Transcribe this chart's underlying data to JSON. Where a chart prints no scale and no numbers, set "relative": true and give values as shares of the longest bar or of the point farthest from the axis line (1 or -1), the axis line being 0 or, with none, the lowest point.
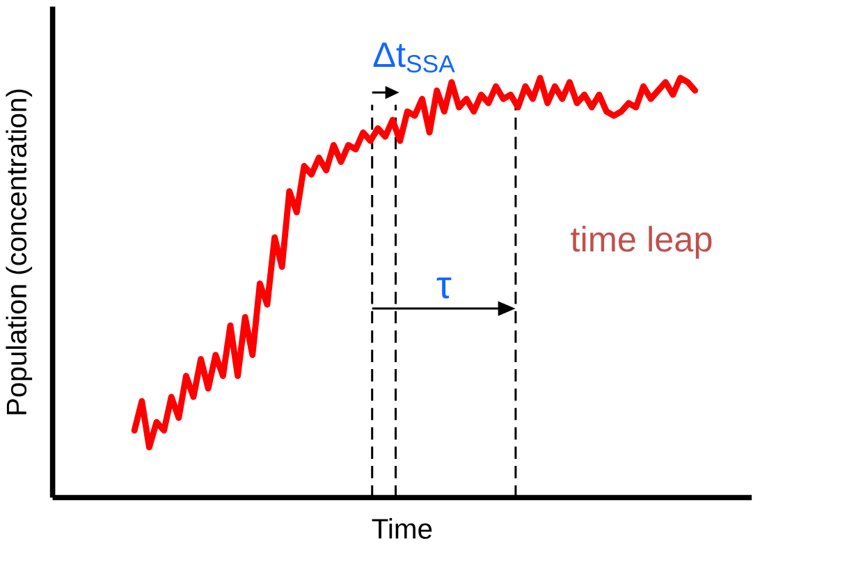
{
  "chart_data": {
    "type": "line",
    "relative": true,
    "xlabel": "Time",
    "ylabel": "Population (concentration)",
    "categories": [
      null,
      null,
      null,
      null,
      null,
      null,
      null,
      null,
      null,
      null,
      null,
      null,
      null,
      null,
      null,
      null,
      null,
      null,
      null,
      null,
      null,
      null,
      null,
      null,
      null,
      null,
      null,
      null,
      null,
      null,
      null,
      null,
      null,
      null,
      null,
      null,
      null,
      null,
      null,
      null,
      null,
      null,
      null,
      null,
      null,
      null,
      null,
      null,
      null,
      null,
      null,
      null,
      null,
      null,
      null,
      null,
      null,
      null,
      null,
      null,
      null,
      null,
      null,
      null,
      null,
      null,
      null,
      null,
      null,
      null,
      null,
      null,
      null,
      null,
      null,
      null,
      null
    ],
    "series": [
      {
        "color": "#ff0000",
        "values": [
          0.16,
          0.23,
          0.12,
          0.18,
          0.16,
          0.24,
          0.19,
          0.29,
          0.24,
          0.33,
          0.26,
          0.34,
          0.29,
          0.41,
          0.29,
          0.43,
          0.34,
          0.51,
          0.46,
          0.62,
          0.55,
          0.73,
          0.68,
          0.79,
          0.77,
          0.81,
          0.78,
          0.84,
          0.8,
          0.84,
          0.83,
          0.87,
          0.85,
          0.88,
          0.86,
          0.9,
          0.85,
          0.92,
          0.91,
          0.95,
          0.87,
          0.97,
          0.92,
          0.99,
          0.93,
          0.95,
          0.92,
          0.96,
          0.94,
          0.98,
          0.95,
          0.96,
          0.93,
          0.98,
          0.95,
          1.0,
          0.94,
          0.98,
          0.95,
          0.99,
          0.94,
          0.96,
          0.93,
          0.96,
          0.92,
          0.91,
          0.92,
          0.94,
          0.93,
          0.98,
          0.95,
          0.97,
          0.99,
          0.96,
          1.0,
          0.99,
          0.97
        ]
      }
    ],
    "annotations": [
      "Δt$_{SSA}$",
      "τ",
      "time leap"
    ]
  }
}
